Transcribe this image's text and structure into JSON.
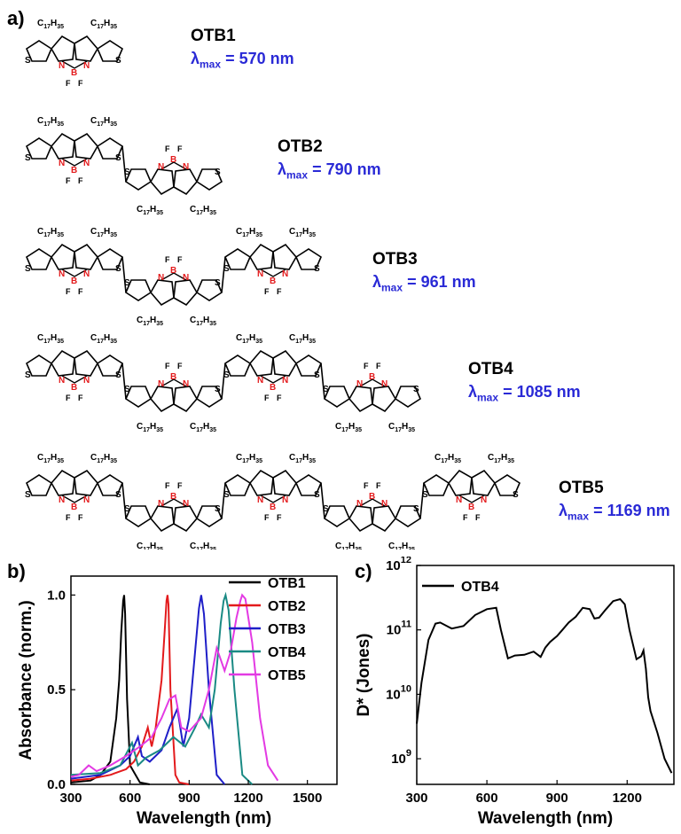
{
  "panels": {
    "a": "a)",
    "b": "b)",
    "c": "c)"
  },
  "molecule_labels": {
    "alkyl": "C17H35",
    "heteroatoms": {
      "S": "S",
      "N": "N",
      "B": "B",
      "F": "F"
    }
  },
  "compounds": [
    {
      "name": "OTB1",
      "lambda_label": "λ",
      "lambda_sub": "max",
      "lambda_value": "= 570 nm",
      "units": 1
    },
    {
      "name": "OTB2",
      "lambda_label": "λ",
      "lambda_sub": "max",
      "lambda_value": "= 790 nm",
      "units": 2
    },
    {
      "name": "OTB3",
      "lambda_label": "λ",
      "lambda_sub": "max",
      "lambda_value": "= 961 nm",
      "units": 3
    },
    {
      "name": "OTB4",
      "lambda_label": "λ",
      "lambda_sub": "max",
      "lambda_value": "= 1085 nm",
      "units": 4
    },
    {
      "name": "OTB5",
      "lambda_label": "λ",
      "lambda_sub": "max",
      "lambda_value": "= 1169 nm",
      "units": 5
    }
  ],
  "colors": {
    "OTB1": "#000000",
    "OTB2": "#e31a1c",
    "OTB3": "#1f1fc8",
    "OTB4": "#1a8a84",
    "OTB5": "#e33ae3",
    "lambda_text": "#2a2ad6",
    "atom_red": "#e31a1c"
  },
  "chart_data": [
    {
      "type": "line",
      "xlabel": "Wavelength (nm)",
      "ylabel": "Absorbance (norm.)",
      "xlim": [
        300,
        1650
      ],
      "ylim": [
        0,
        1.1
      ],
      "xticks": [
        300,
        600,
        900,
        1200,
        1500
      ],
      "yticks": [
        0.0,
        0.5,
        1.0
      ],
      "ytick_labels": [
        "0.0",
        "0.5",
        "1.0"
      ],
      "legend_position": "top-right",
      "series": [
        {
          "name": "OTB1",
          "x": [
            300,
            400,
            450,
            500,
            530,
            545,
            555,
            565,
            570,
            575,
            585,
            600,
            650,
            700
          ],
          "y": [
            0.01,
            0.02,
            0.05,
            0.12,
            0.35,
            0.55,
            0.8,
            0.97,
            1.0,
            0.9,
            0.45,
            0.1,
            0.01,
            0.0
          ]
        },
        {
          "name": "OTB2",
          "x": [
            300,
            400,
            500,
            580,
            620,
            660,
            690,
            710,
            730,
            760,
            775,
            785,
            790,
            795,
            805,
            830,
            850,
            900
          ],
          "y": [
            0.02,
            0.03,
            0.05,
            0.08,
            0.12,
            0.2,
            0.3,
            0.2,
            0.3,
            0.55,
            0.8,
            0.97,
            1.0,
            0.95,
            0.5,
            0.05,
            0.01,
            0.0
          ]
        },
        {
          "name": "OTB3",
          "x": [
            300,
            450,
            550,
            600,
            620,
            640,
            660,
            700,
            760,
            800,
            840,
            870,
            900,
            930,
            950,
            961,
            975,
            1000,
            1040,
            1080
          ],
          "y": [
            0.03,
            0.05,
            0.1,
            0.15,
            0.2,
            0.25,
            0.15,
            0.12,
            0.18,
            0.3,
            0.4,
            0.2,
            0.35,
            0.7,
            0.93,
            1.0,
            0.9,
            0.5,
            0.05,
            0.0
          ]
        },
        {
          "name": "OTB4",
          "x": [
            300,
            450,
            550,
            610,
            640,
            680,
            750,
            820,
            880,
            930,
            960,
            1000,
            1030,
            1060,
            1075,
            1085,
            1100,
            1130,
            1170,
            1220
          ],
          "y": [
            0.05,
            0.06,
            0.1,
            0.22,
            0.1,
            0.14,
            0.18,
            0.25,
            0.2,
            0.3,
            0.37,
            0.3,
            0.5,
            0.85,
            0.97,
            1.0,
            0.92,
            0.5,
            0.05,
            0.0
          ]
        },
        {
          "name": "OTB5",
          "x": [
            300,
            340,
            390,
            430,
            500,
            580,
            650,
            710,
            760,
            800,
            830,
            860,
            900,
            960,
            1000,
            1040,
            1080,
            1110,
            1140,
            1160,
            1169,
            1185,
            1220,
            1260,
            1300,
            1350
          ],
          "y": [
            0.04,
            0.05,
            0.1,
            0.07,
            0.1,
            0.15,
            0.2,
            0.25,
            0.35,
            0.45,
            0.47,
            0.3,
            0.28,
            0.35,
            0.5,
            0.72,
            0.6,
            0.7,
            0.88,
            0.97,
            1.0,
            0.98,
            0.75,
            0.35,
            0.1,
            0.02
          ]
        }
      ]
    },
    {
      "type": "line",
      "xlabel": "Wavelength (nm)",
      "ylabel": "D* (Jones)",
      "yscale": "log",
      "xlim": [
        300,
        1400
      ],
      "ylim": [
        400000000.0,
        1000000000000.0
      ],
      "xticks": [
        300,
        600,
        900,
        1200
      ],
      "yticks": [
        1000000000.0,
        10000000000.0,
        100000000000.0,
        1000000000000.0
      ],
      "ytick_labels": [
        "10^9",
        "10^10",
        "10^11",
        "10^12"
      ],
      "legend_position": "top-left",
      "series": [
        {
          "name": "OTB4",
          "x": [
            300,
            320,
            350,
            380,
            400,
            450,
            500,
            550,
            600,
            640,
            660,
            690,
            720,
            760,
            800,
            830,
            850,
            870,
            900,
            950,
            980,
            1010,
            1040,
            1060,
            1080,
            1110,
            1140,
            1170,
            1190,
            1210,
            1240,
            1260,
            1270,
            1280,
            1290,
            1300,
            1330,
            1360,
            1390
          ],
          "y": [
            3500000000.0,
            15000000000.0,
            70000000000.0,
            125000000000.0,
            130000000000.0,
            105000000000.0,
            115000000000.0,
            170000000000.0,
            210000000000.0,
            220000000000.0,
            100000000000.0,
            36000000000.0,
            40000000000.0,
            41000000000.0,
            46000000000.0,
            38000000000.0,
            53000000000.0,
            65000000000.0,
            80000000000.0,
            130000000000.0,
            160000000000.0,
            220000000000.0,
            210000000000.0,
            150000000000.0,
            155000000000.0,
            210000000000.0,
            280000000000.0,
            300000000000.0,
            250000000000.0,
            100000000000.0,
            35000000000.0,
            39000000000.0,
            48000000000.0,
            25000000000.0,
            9000000000.0,
            5500000000.0,
            2500000000.0,
            1000000000.0,
            600000000.0
          ]
        }
      ]
    }
  ]
}
